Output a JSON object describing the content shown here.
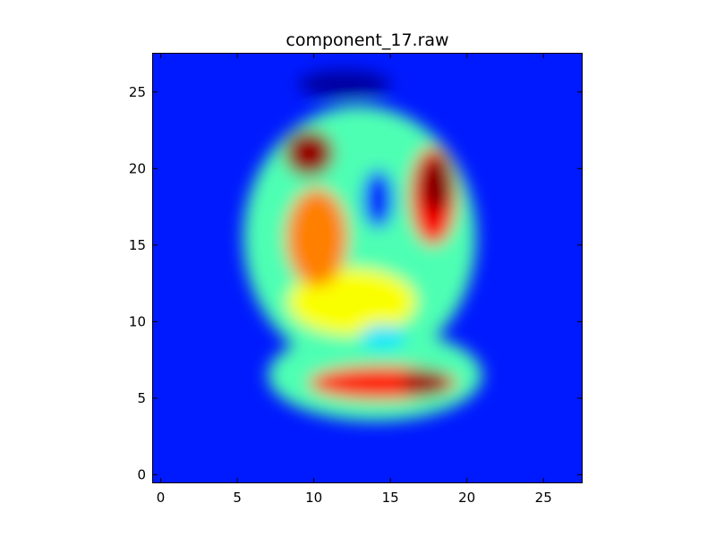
{
  "chart_data": {
    "type": "heatmap",
    "title": "component_17.raw",
    "xlabel": "",
    "ylabel": "",
    "colormap": "jet",
    "grid_shape": [
      28,
      28
    ],
    "xlim": [
      -0.5,
      27.5
    ],
    "ylim": [
      27.5,
      -0.5
    ],
    "xticks": [
      0,
      5,
      10,
      15,
      20,
      25
    ],
    "yticks": [
      0,
      5,
      10,
      15,
      20,
      25
    ],
    "grid": false,
    "background_value": 0.15,
    "features": [
      {
        "name": "outer-halo-top",
        "cx": 14.0,
        "cy": 6.5,
        "rx": 7.0,
        "ry": 3.0,
        "v": 0.45
      },
      {
        "name": "outer-halo-body",
        "cx": 13.0,
        "cy": 15.5,
        "rx": 7.6,
        "ry": 8.6,
        "v": 0.45
      },
      {
        "name": "top-bar",
        "cx": 14.5,
        "cy": 6.0,
        "rx": 4.8,
        "ry": 1.1,
        "v": 0.85
      },
      {
        "name": "top-bar-peak",
        "cx": 17.3,
        "cy": 6.0,
        "rx": 1.5,
        "ry": 0.9,
        "v": 0.97
      },
      {
        "name": "mid-band",
        "cx": 12.5,
        "cy": 11.3,
        "rx": 4.2,
        "ry": 2.2,
        "v": 0.62
      },
      {
        "name": "left-arm",
        "cx": 10.2,
        "cy": 15.5,
        "rx": 2.0,
        "ry": 3.2,
        "v": 0.75
      },
      {
        "name": "left-peak",
        "cx": 9.7,
        "cy": 21.0,
        "rx": 1.6,
        "ry": 1.5,
        "v": 0.98
      },
      {
        "name": "right-lobe",
        "cx": 17.8,
        "cy": 18.2,
        "rx": 1.5,
        "ry": 3.2,
        "v": 0.88
      },
      {
        "name": "right-peak",
        "cx": 18.0,
        "cy": 19.0,
        "rx": 1.0,
        "ry": 1.8,
        "v": 1.0
      },
      {
        "name": "center-hole",
        "cx": 14.2,
        "cy": 18.0,
        "rx": 1.0,
        "ry": 1.9,
        "v": 0.15
      },
      {
        "name": "notch",
        "cx": 14.5,
        "cy": 9.0,
        "rx": 1.5,
        "ry": 0.8,
        "v": 0.35
      },
      {
        "name": "bottom-shadow",
        "cx": 12.0,
        "cy": 25.5,
        "rx": 3.0,
        "ry": 0.9,
        "v": 0.03
      }
    ]
  }
}
